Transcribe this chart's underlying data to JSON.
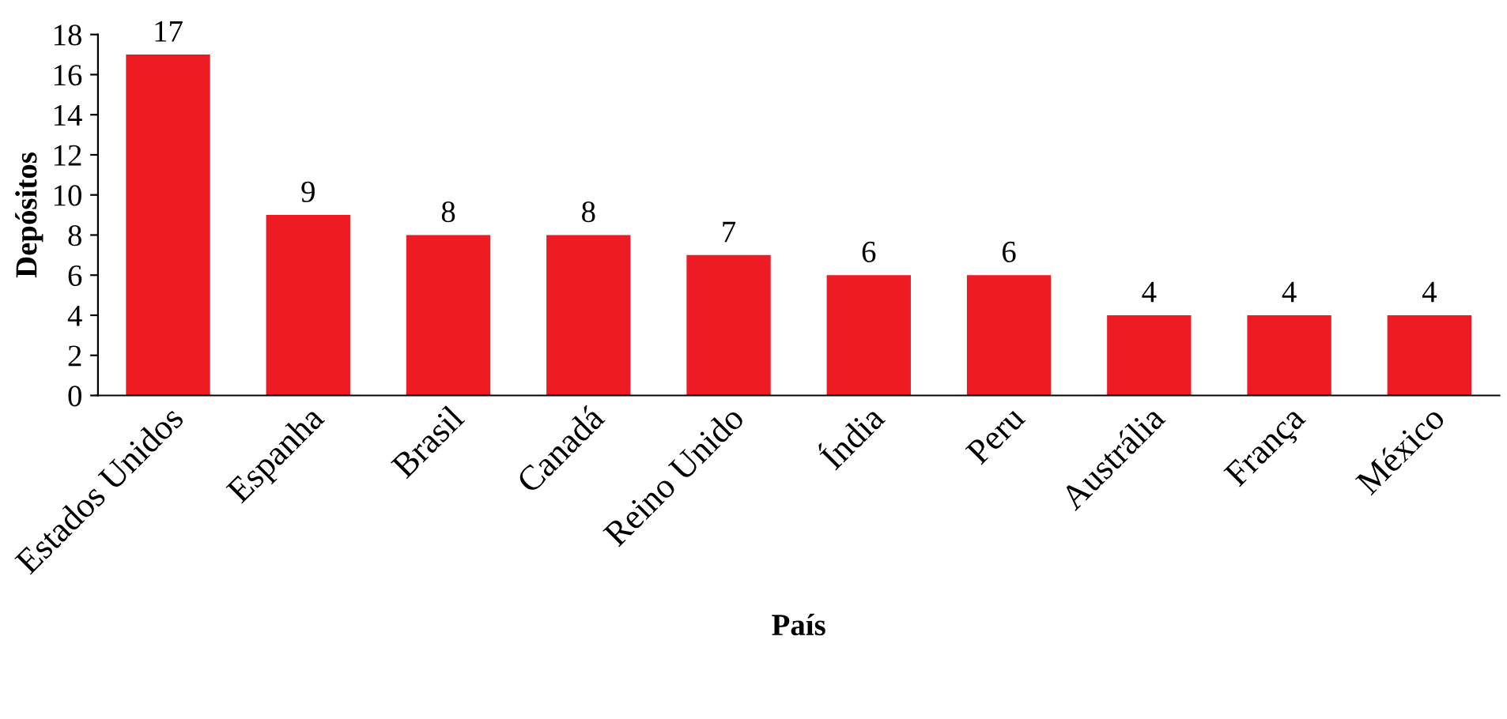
{
  "chart_data": {
    "type": "bar",
    "xlabel": "País",
    "ylabel": "Depósitos",
    "categories": [
      "Estados Unidos",
      "Espanha",
      "Brasil",
      "Canadá",
      "Reino Unido",
      "Índia",
      "Peru",
      "Austrália",
      "França",
      "México"
    ],
    "values": [
      17,
      9,
      8,
      8,
      7,
      6,
      6,
      4,
      4,
      4
    ],
    "color": "#ed1c24",
    "ylim": [
      0,
      18
    ],
    "yticks": [
      0,
      2,
      4,
      6,
      8,
      10,
      12,
      14,
      16,
      18
    ],
    "data_labels": true,
    "grid": false
  }
}
